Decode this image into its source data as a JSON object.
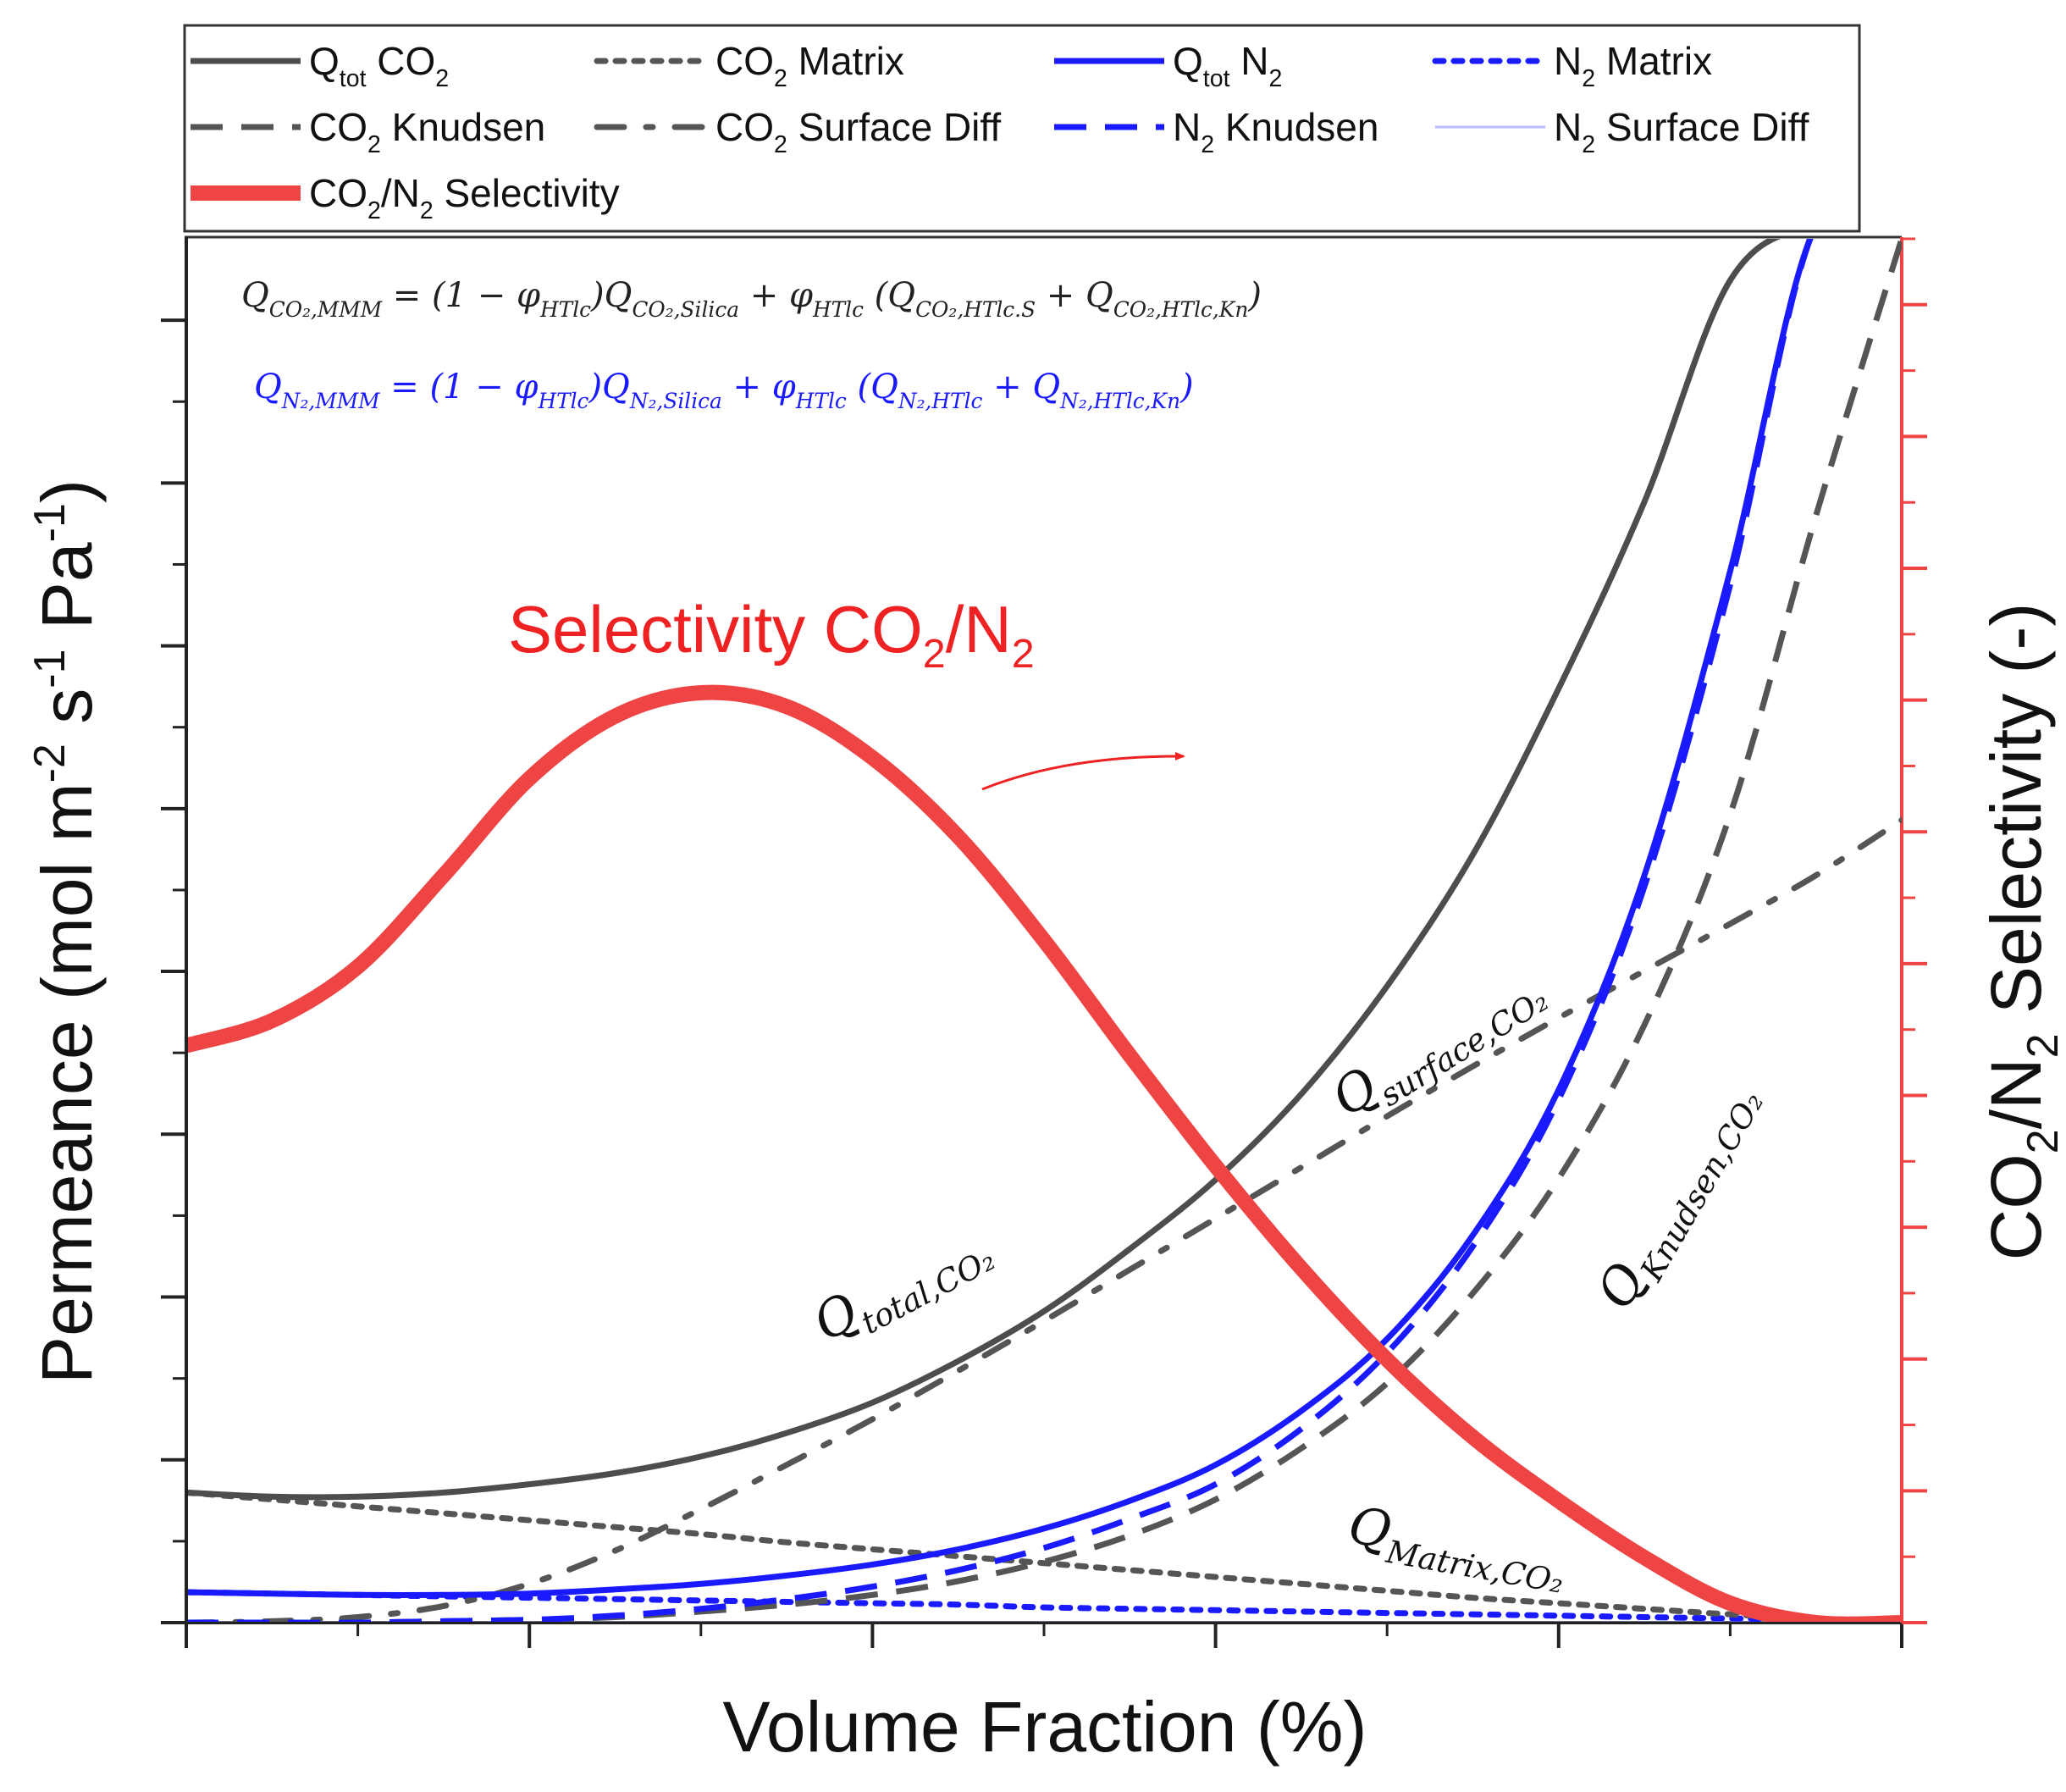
{
  "chart_data": {
    "type": "line",
    "xlabel": "Volume Fraction (%)",
    "ylabel_left": "Permeance (mol m⁻² s⁻¹ Pa⁻¹)",
    "ylabel_right": "CO₂/N₂ Selectivity (-)",
    "xlim": [
      0,
      1
    ],
    "ylim_left": [
      0,
      1
    ],
    "ylim_right": [
      0,
      1
    ],
    "x": [
      0,
      0.05,
      0.1,
      0.15,
      0.2,
      0.25,
      0.3,
      0.35,
      0.4,
      0.45,
      0.5,
      0.55,
      0.6,
      0.65,
      0.7,
      0.75,
      0.8,
      0.85,
      0.9,
      0.95,
      1.0
    ],
    "series": [
      {
        "name": "Qtot CO2",
        "axis": "left",
        "color": "#4d4d4d",
        "style": "solid",
        "values": [
          0.094,
          0.091,
          0.091,
          0.094,
          0.1,
          0.108,
          0.12,
          0.137,
          0.159,
          0.189,
          0.225,
          0.27,
          0.32,
          0.382,
          0.46,
          0.555,
          0.675,
          0.81,
          0.97,
          1.01,
          1.01
        ]
      },
      {
        "name": "CO2 Matrix",
        "axis": "left",
        "color": "#555555",
        "style": "dotted",
        "values": [
          0.094,
          0.089,
          0.084,
          0.079,
          0.074,
          0.069,
          0.064,
          0.058,
          0.053,
          0.048,
          0.043,
          0.038,
          0.033,
          0.028,
          0.023,
          0.018,
          0.014,
          0.01,
          0.006,
          0.003,
          0.001
        ]
      },
      {
        "name": "N2 Matrix",
        "axis": "left",
        "color": "#1a1aff",
        "style": "dotted",
        "values": [
          0.022,
          0.021,
          0.02,
          0.019,
          0.018,
          0.017,
          0.016,
          0.015,
          0.014,
          0.013,
          0.011,
          0.01,
          0.009,
          0.008,
          0.007,
          0.006,
          0.005,
          0.004,
          0.003,
          0.002,
          0.001
        ]
      },
      {
        "name": "CO2 Knudsen",
        "axis": "left",
        "color": "#555555",
        "style": "dashed",
        "values": [
          0.0,
          0.0,
          0.0,
          0.001,
          0.002,
          0.004,
          0.008,
          0.013,
          0.02,
          0.03,
          0.044,
          0.063,
          0.089,
          0.126,
          0.173,
          0.238,
          0.321,
          0.432,
          0.584,
          0.8,
          1.0
        ]
      },
      {
        "name": "CO2 Surface Diff",
        "axis": "left",
        "color": "#555555",
        "style": "dotdash",
        "values": [
          0.0,
          0.001,
          0.004,
          0.012,
          0.028,
          0.052,
          0.082,
          0.114,
          0.147,
          0.182,
          0.218,
          0.255,
          0.292,
          0.329,
          0.366,
          0.402,
          0.437,
          0.471,
          0.505,
          0.54,
          0.58
        ]
      },
      {
        "name": "Qtot N2",
        "axis": "left",
        "color": "#1a1aff",
        "style": "solid",
        "values": [
          0.022,
          0.021,
          0.02,
          0.02,
          0.021,
          0.024,
          0.028,
          0.034,
          0.042,
          0.053,
          0.068,
          0.088,
          0.114,
          0.153,
          0.205,
          0.28,
          0.385,
          0.54,
          0.76,
          1.01,
          1.01
        ]
      },
      {
        "name": "N2 Knudsen",
        "axis": "left",
        "color": "#1a1aff",
        "style": "dashed",
        "values": [
          0.0,
          0.0,
          0.0,
          0.001,
          0.002,
          0.005,
          0.01,
          0.017,
          0.026,
          0.038,
          0.054,
          0.075,
          0.1,
          0.14,
          0.195,
          0.272,
          0.378,
          0.532,
          0.75,
          1.01,
          1.01
        ]
      },
      {
        "name": "N2 Surface Diff",
        "axis": "left",
        "color": "#b8b8ff",
        "style": "solid",
        "values": [
          0.0,
          0.0,
          0.0,
          0.0,
          0.0,
          0.0,
          0.0,
          0.0,
          0.0,
          0.0,
          0.0,
          0.0,
          0.0,
          0.0,
          0.0,
          0.0,
          0.0,
          0.0,
          0.0,
          0.0,
          0.0
        ]
      },
      {
        "name": "CO2/N2 Selectivity",
        "axis": "right",
        "color": "#ee4444",
        "style": "solid",
        "values": [
          0.417,
          0.435,
          0.474,
          0.54,
          0.61,
          0.655,
          0.672,
          0.662,
          0.625,
          0.568,
          0.493,
          0.41,
          0.33,
          0.256,
          0.19,
          0.134,
          0.088,
          0.047,
          0.014,
          0.0,
          0.0
        ]
      }
    ],
    "left_major_ticks": 9,
    "right_major_ticks": 11,
    "x_major_ticks": 6
  },
  "legend": {
    "items": [
      {
        "text": "Q",
        "sub": "tot",
        "tail": " CO",
        "sub2": "2",
        "tail2": ""
      },
      {
        "text": "CO",
        "sub": "2",
        "tail": " Matrix",
        "sub2": "",
        "tail2": ""
      },
      {
        "text": "Q",
        "sub": "tot",
        "tail": " N",
        "sub2": "2",
        "tail2": ""
      },
      {
        "text": "N",
        "sub": "2",
        "tail": " Matrix",
        "sub2": "",
        "tail2": ""
      },
      {
        "text": "CO",
        "sub": "2",
        "tail": " Knudsen",
        "sub2": "",
        "tail2": ""
      },
      {
        "text": "CO",
        "sub": "2",
        "tail": " Surface Diff",
        "sub2": "",
        "tail2": ""
      },
      {
        "text": "N",
        "sub": "2",
        "tail": " Knudsen",
        "sub2": "",
        "tail2": ""
      },
      {
        "text": "N",
        "sub": "2",
        "tail": " Surface Diff",
        "sub2": "",
        "tail2": ""
      },
      {
        "text": "CO",
        "sub": "2",
        "tail": "/N",
        "sub2": "2",
        "tail2": " Selectivity"
      }
    ]
  },
  "equations": {
    "co2": {
      "lhs": "Q",
      "lhs_sub": "CO₂,MMM",
      "mid1": " = (1 − φ",
      "mid1_sub": "HTlc",
      "mid2": ")Q",
      "mid2_sub": "CO₂,Silica",
      "mid3": " + φ",
      "mid3_sub": "HTlc",
      "mid4": " (Q",
      "mid4_sub": "CO₂,HTlc.S",
      "mid5": " + Q",
      "mid5_sub": "CO₂,HTlc,Kn",
      "end": ")"
    },
    "n2": {
      "lhs": "Q",
      "lhs_sub": "N₂,MMM",
      "mid1": " = (1 − φ",
      "mid1_sub": "HTlc",
      "mid2": ")Q",
      "mid2_sub": "N₂,Silica",
      "mid3": " + φ",
      "mid3_sub": "HTlc",
      "mid4": " (Q",
      "mid4_sub": "N₂,HTlc",
      "mid5": " + Q",
      "mid5_sub": "N₂,HTlc,Kn",
      "end": ")"
    }
  },
  "annotations": {
    "selectivity": {
      "main": "Selectivity CO",
      "sub1": "2",
      "mid": "/N",
      "sub2": "2"
    },
    "total": {
      "main": "Q",
      "sub": "total,CO₂"
    },
    "surface": {
      "main": "Q",
      "sub": "surface,CO₂"
    },
    "knudsen": {
      "main": "Q",
      "sub": "Knudsen,CO₂"
    },
    "matrix": {
      "main": "Q",
      "sub": "Matrix,CO₂"
    }
  },
  "axis_titles": {
    "x": "Volume Fraction (%)",
    "y_left": {
      "a": "Permeance (mol m",
      "s1": "-2",
      "b": " s",
      "s2": "-1",
      "c": " Pa",
      "s3": "-1",
      "d": ")"
    },
    "y_right": {
      "a": "CO",
      "s1": "2",
      "b": "/N",
      "s2": "2",
      "c": " Selectivity (-)"
    }
  },
  "colors": {
    "co2": "#4d4d4d",
    "n2": "#1a1aff",
    "selectivity": "#ee4444",
    "right_axis": "#ee4444"
  }
}
